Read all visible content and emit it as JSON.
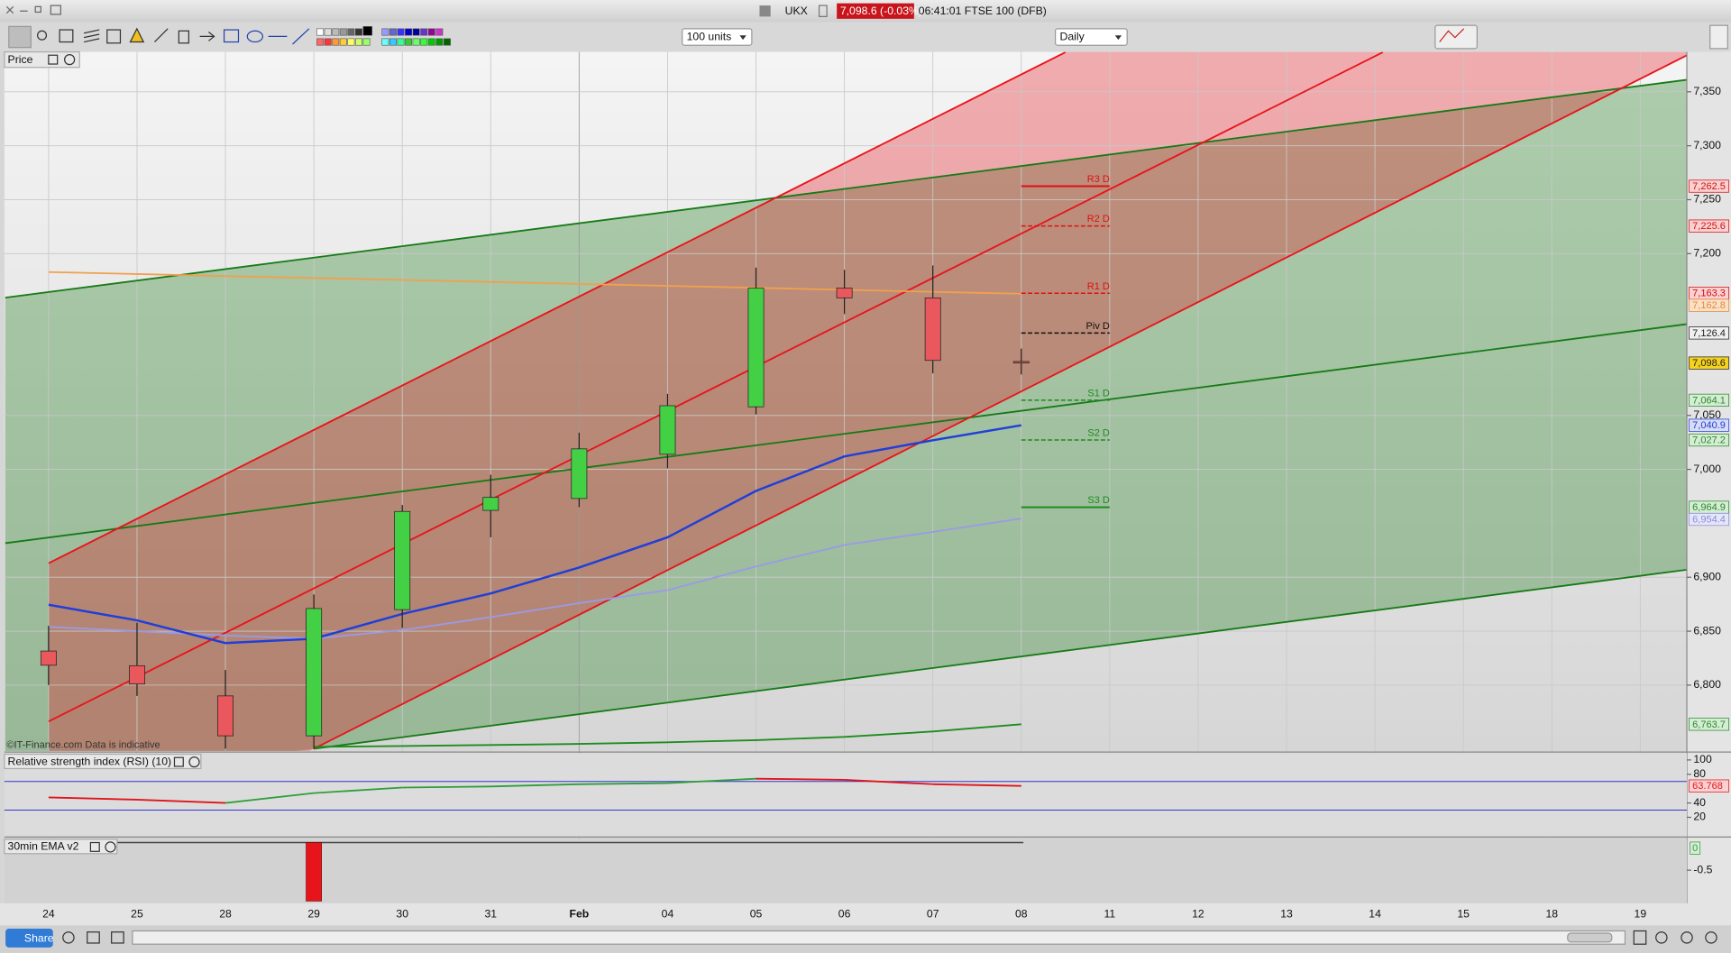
{
  "titlebar": {
    "symbol": "UKX",
    "quote": "7,098.6 (-0.03%)",
    "time_name": "06:41:01 FTSE 100 (DFB)"
  },
  "toolbar": {
    "units": "100 units",
    "period": "Daily"
  },
  "footer": {
    "share": "Share"
  },
  "chart_data": [
    {
      "type": "candlestick",
      "title": "Price",
      "watermark": "©IT-Finance.com Data is indicative",
      "categories": [
        "24",
        "25",
        "28",
        "29",
        "30",
        "31",
        "Feb",
        "04",
        "05",
        "06",
        "07",
        "08",
        "11",
        "12",
        "13",
        "14",
        "15",
        "18",
        "19"
      ],
      "open": [
        6831.6,
        6818,
        6790,
        6753,
        6870,
        6962,
        6973,
        7014,
        7058,
        7168,
        7159,
        7100,
        null,
        null,
        null,
        null,
        null,
        null,
        null
      ],
      "high": [
        6855,
        6858,
        6814,
        6884,
        6967,
        6995,
        7034,
        7070,
        7187,
        7185,
        7189,
        7112,
        null,
        null,
        null,
        null,
        null,
        null,
        null
      ],
      "low": [
        6800,
        6790,
        6741,
        6741,
        6853,
        6937,
        6965,
        7001,
        7051,
        7144,
        7089,
        7088,
        null,
        null,
        null,
        null,
        null,
        null,
        null
      ],
      "close": [
        6818.4,
        6801,
        6753,
        6871,
        6961,
        6974,
        7019,
        7059,
        7168,
        7159,
        7101,
        7098.6,
        null,
        null,
        null,
        null,
        null,
        null,
        null
      ],
      "up_color": "#44d044",
      "down_color": "#e8585c",
      "lines": [
        {
          "color": "#f0a050",
          "values": [
            7182.9,
            7181.1,
            7179.2,
            7177.4,
            7175.6,
            7173.8,
            7171.9,
            7170.1,
            7168.3,
            7166.4,
            7164.6,
            7162.8,
            null,
            null,
            null,
            null,
            null,
            null,
            null
          ]
        },
        {
          "color": "#9a9ae8",
          "values": [
            6854,
            6850,
            6846,
            6843,
            6851,
            6863,
            6876,
            6888,
            6910,
            6930,
            6942,
            6954.4,
            null,
            null,
            null,
            null,
            null,
            null,
            null
          ]
        },
        {
          "color": "#1f3fd8",
          "values": [
            6874.5,
            6860,
            6839,
            6843,
            6866,
            6885,
            6909,
            6937,
            6980,
            7012,
            7027,
            7040.9,
            null,
            null,
            null,
            null,
            null,
            null,
            null
          ]
        },
        {
          "color": "#1e8c1e",
          "values": [
            null,
            null,
            null,
            6742.8,
            6743.5,
            6744.5,
            6745.5,
            6747,
            6749,
            6752,
            6757,
            6763.7,
            null,
            null,
            null,
            null,
            null,
            null,
            null
          ]
        }
      ],
      "trendlines": [
        {
          "color": "#177a17",
          "x": [
            -0.49,
            18.53
          ],
          "y": [
            7159.2,
            7361.2
          ]
        },
        {
          "color": "#177a17",
          "x": [
            -0.49,
            18.53
          ],
          "y": [
            6931.6,
            7134.7
          ]
        },
        {
          "color": "#177a17",
          "x": [
            3,
            18.53
          ],
          "y": [
            6741,
            6907
          ]
        },
        {
          "color": "#e8141b",
          "x": [
            0,
            11.5
          ],
          "y": [
            6913,
            7386.7
          ]
        },
        {
          "color": "#e8141b",
          "x": [
            0,
            15.09
          ],
          "y": [
            6766.3,
            7386.7
          ]
        },
        {
          "color": "#e8141b",
          "x": [
            3,
            18.53
          ],
          "y": [
            6741,
            7384
          ]
        }
      ],
      "pivots": {
        "x": [
          11,
          12
        ],
        "labels": [
          "R3 D",
          "R2 D",
          "R1 D",
          "Piv D",
          "S1 D",
          "S2 D",
          "S3 D"
        ],
        "values": [
          7262.5,
          7225.6,
          7163.3,
          7126.4,
          7064.1,
          7027.2,
          6964.9
        ],
        "colors": [
          "#e01010",
          "#e01010",
          "#e01010",
          "#111111",
          "#1e8c1e",
          "#1e8c1e",
          "#1e8c1e"
        ],
        "dashed": [
          false,
          true,
          true,
          true,
          true,
          true,
          false
        ]
      },
      "price_markers": {
        "values": [
          7262.5,
          7225.6,
          7163.3,
          7162.8,
          7126.4,
          7098.6,
          7064.1,
          7040.9,
          7027.2,
          6964.9,
          6954.4,
          6763.7
        ],
        "value_labels": [
          "7,262.5",
          "7,225.6",
          "7,163.3",
          "7,162.8",
          "7,126.4",
          "7,098.6",
          "7,064.1",
          "7,040.9",
          "7,027.2",
          "6,964.9",
          "6,954.4",
          "6,763.7"
        ],
        "colors": [
          "#d01010",
          "#d01010",
          "#d01010",
          "#e08a3a",
          "#222222",
          "#222222",
          "#2a8a2a",
          "#2040d0",
          "#2a8a2a",
          "#2a8a2a",
          "#8a8ad8",
          "#2a8a2a"
        ],
        "fills": [
          "#fbd0d0",
          "#fbd0d0",
          "#fbd0d0",
          "#fbe0c8",
          "#f0f0f0",
          "#f5d21c",
          "#d5ecd5",
          "#d8dcf8",
          "#d5ecd5",
          "#d5ecd5",
          "#e6e6fa",
          "#d5ecd5"
        ]
      },
      "ylim": [
        6739,
        7387
      ],
      "yticks": [
        {
          "value": 7350,
          "label": "7,350"
        },
        {
          "value": 7300,
          "label": "7,300"
        },
        {
          "value": 7250,
          "label": "7,250"
        },
        {
          "value": 7200,
          "label": "7,200"
        },
        {
          "value": 7050,
          "label": "7,050"
        },
        {
          "value": 7000,
          "label": "7,000"
        },
        {
          "value": 6900,
          "label": "6,900"
        },
        {
          "value": 6850,
          "label": "6,850"
        },
        {
          "value": 6800,
          "label": "6,800"
        }
      ],
      "grid": true
    },
    {
      "type": "line",
      "title": "Relative strength index (RSI) (10)",
      "values": [
        47.7,
        44.6,
        40,
        53.8,
        61.5,
        63,
        66.2,
        67.7,
        73.8,
        72.3,
        66.2,
        63.768,
        null,
        null,
        null,
        null,
        null,
        null,
        null
      ],
      "rise_color": "#2e9e3a",
      "fall_color": "#e0141b",
      "levels": [
        70,
        30
      ],
      "level_color": "#3333cc",
      "marker": {
        "value": 63.768,
        "color": "#e0141b"
      },
      "ylim": [
        -6,
        108
      ],
      "yticks": [
        100,
        80,
        40,
        20
      ]
    },
    {
      "type": "bar",
      "title": "30min EMA v2",
      "values": [
        null,
        null,
        null,
        -1.06,
        null,
        null,
        null,
        null,
        null,
        null,
        null,
        null,
        null,
        null,
        null,
        null,
        null,
        null,
        null
      ],
      "color": "#e8141b",
      "marker": {
        "value": 0,
        "color": "#2e9e3a"
      },
      "ylim": [
        -1.1,
        0.06
      ],
      "yticks": [
        -0.5
      ]
    }
  ]
}
